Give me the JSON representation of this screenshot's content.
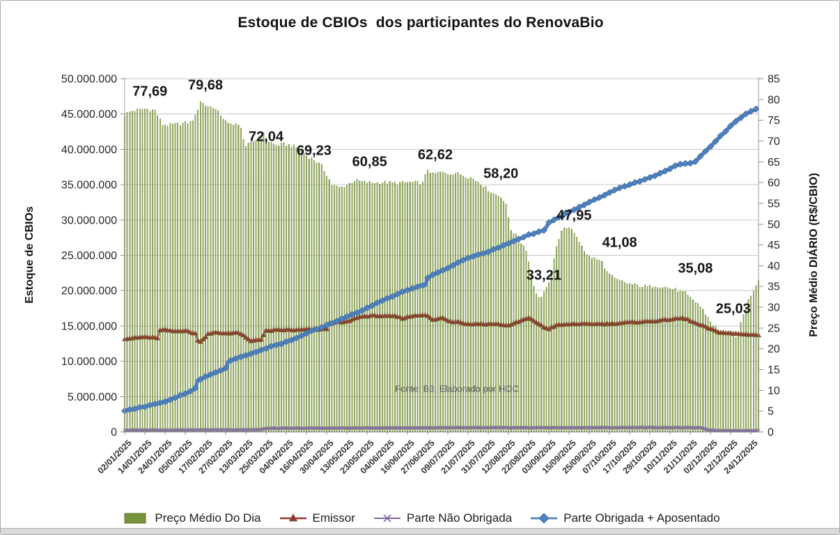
{
  "chart_data": {
    "type": "combo-bar-line",
    "title": "Estoque de CBIOs  dos participantes do RenovaBio",
    "source_note": "Fonte: B3, Elaborado por HOC",
    "legend_position": "bottom",
    "x_axis": {
      "n_points": 252,
      "points_per_tick": 8,
      "tick_labels": [
        "02/01/2025",
        "14/01/2025",
        "24/01/2025",
        "05/02/2025",
        "17/02/2025",
        "27/02/2025",
        "13/03/2025",
        "25/03/2025",
        "04/04/2025",
        "16/04/2025",
        "30/04/2025",
        "13/05/2025",
        "23/05/2025",
        "04/06/2025",
        "16/06/2025",
        "27/06/2025",
        "09/07/2025",
        "21/07/2025",
        "31/07/2025",
        "12/08/2025",
        "22/08/2025",
        "03/09/2025",
        "15/09/2025",
        "25/09/2025",
        "07/10/2025",
        "17/10/2025",
        "29/10/2025",
        "10/11/2025",
        "21/11/2025",
        "02/12/2025",
        "12/12/2025",
        "24/12/2025"
      ]
    },
    "left_axis": {
      "label": "Estoque de CBIOs",
      "min": 0,
      "max": 50000000,
      "step": 5000000
    },
    "right_axis": {
      "label": "Preço Médio DIÁRIO (R$/CBIO)",
      "min": 0,
      "max": 85,
      "step": 5
    },
    "series": [
      {
        "name": "Preço Médio Do Dia",
        "type": "bar",
        "axis": "right",
        "marker": "square",
        "color": "#77933C",
        "keypoints": [
          [
            0,
            76.5
          ],
          [
            3,
            77.3
          ],
          [
            6,
            77.6
          ],
          [
            9,
            77.8
          ],
          [
            12,
            77.4
          ],
          [
            13,
            76.3
          ],
          [
            15,
            74.0
          ],
          [
            18,
            73.9
          ],
          [
            22,
            74.2
          ],
          [
            26,
            74.5
          ],
          [
            28,
            76.0
          ],
          [
            30,
            79.7
          ],
          [
            32,
            78.6
          ],
          [
            35,
            78.2
          ],
          [
            38,
            76.3
          ],
          [
            41,
            74.0
          ],
          [
            44,
            74.3
          ],
          [
            46,
            73.0
          ],
          [
            48,
            68.8
          ],
          [
            50,
            69.5
          ],
          [
            53,
            70.8
          ],
          [
            55,
            71.8
          ],
          [
            57,
            70.0
          ],
          [
            60,
            69.0
          ],
          [
            63,
            69.3
          ],
          [
            66,
            69.0
          ],
          [
            69,
            68.2
          ],
          [
            72,
            66.5
          ],
          [
            75,
            65.5
          ],
          [
            78,
            64.0
          ],
          [
            80,
            62.0
          ],
          [
            82,
            59.5
          ],
          [
            85,
            58.8
          ],
          [
            88,
            59.5
          ],
          [
            91,
            60.6
          ],
          [
            94,
            60.2
          ],
          [
            98,
            60.0
          ],
          [
            103,
            60.1
          ],
          [
            108,
            59.9
          ],
          [
            113,
            60.1
          ],
          [
            118,
            60.0
          ],
          [
            120,
            63.3
          ],
          [
            122,
            62.0
          ],
          [
            125,
            62.5
          ],
          [
            128,
            62.2
          ],
          [
            131,
            62.4
          ],
          [
            134,
            61.8
          ],
          [
            137,
            61.2
          ],
          [
            140,
            60.3
          ],
          [
            143,
            58.8
          ],
          [
            146,
            57.4
          ],
          [
            149,
            56.8
          ],
          [
            151,
            54.5
          ],
          [
            153,
            48.8
          ],
          [
            156,
            46.5
          ],
          [
            159,
            44.0
          ],
          [
            161,
            38.0
          ],
          [
            163,
            33.0
          ],
          [
            165,
            32.4
          ],
          [
            167,
            34.5
          ],
          [
            169,
            38.0
          ],
          [
            171,
            45.0
          ],
          [
            173,
            48.5
          ],
          [
            175,
            49.4
          ],
          [
            178,
            48.0
          ],
          [
            181,
            45.0
          ],
          [
            183,
            42.5
          ],
          [
            186,
            41.8
          ],
          [
            189,
            41.0
          ],
          [
            191,
            38.5
          ],
          [
            194,
            36.8
          ],
          [
            199,
            35.8
          ],
          [
            203,
            35.3
          ],
          [
            207,
            34.9
          ],
          [
            210,
            35.3
          ],
          [
            214,
            34.9
          ],
          [
            218,
            34.3
          ],
          [
            222,
            33.4
          ],
          [
            224,
            32.2
          ],
          [
            227,
            31.0
          ],
          [
            230,
            28.5
          ],
          [
            233,
            25.8
          ],
          [
            236,
            24.2
          ],
          [
            239,
            23.2
          ],
          [
            242,
            22.6
          ],
          [
            243,
            23.5
          ],
          [
            244,
            26.0
          ],
          [
            246,
            30.5
          ],
          [
            248,
            33.0
          ],
          [
            250,
            35.5
          ],
          [
            251,
            37.0
          ]
        ]
      },
      {
        "name": "Emissor",
        "type": "line",
        "axis": "left",
        "marker": "triangle",
        "color": "#943634",
        "marker_edge": "#6f6126",
        "keypoints_millions": [
          [
            0,
            13.2
          ],
          [
            4,
            13.3
          ],
          [
            8,
            13.45
          ],
          [
            12,
            13.3
          ],
          [
            13,
            13.3
          ],
          [
            14,
            14.35
          ],
          [
            16,
            14.45
          ],
          [
            18,
            14.3
          ],
          [
            20,
            14.25
          ],
          [
            22,
            14.3
          ],
          [
            24,
            14.35
          ],
          [
            26,
            14.1
          ],
          [
            28,
            13.95
          ],
          [
            29,
            12.9
          ],
          [
            30,
            12.85
          ],
          [
            31,
            13.1
          ],
          [
            33,
            13.9
          ],
          [
            36,
            14.05
          ],
          [
            39,
            13.95
          ],
          [
            42,
            14.0
          ],
          [
            44,
            14.05
          ],
          [
            46,
            13.9
          ],
          [
            48,
            13.35
          ],
          [
            50,
            12.85
          ],
          [
            52,
            13.05
          ],
          [
            54,
            13.1
          ],
          [
            56,
            14.3
          ],
          [
            60,
            14.4
          ],
          [
            64,
            14.45
          ],
          [
            68,
            14.4
          ],
          [
            72,
            14.5
          ],
          [
            76,
            14.5
          ],
          [
            80,
            14.6
          ],
          [
            81,
            15.3
          ],
          [
            83,
            15.55
          ],
          [
            86,
            15.5
          ],
          [
            88,
            15.6
          ],
          [
            90,
            15.85
          ],
          [
            92,
            16.2
          ],
          [
            95,
            16.4
          ],
          [
            100,
            16.45
          ],
          [
            104,
            16.35
          ],
          [
            107,
            16.4
          ],
          [
            110,
            16.1
          ],
          [
            112,
            16.25
          ],
          [
            115,
            16.5
          ],
          [
            118,
            16.55
          ],
          [
            120,
            16.4
          ],
          [
            122,
            15.85
          ],
          [
            124,
            16.0
          ],
          [
            126,
            16.15
          ],
          [
            128,
            15.8
          ],
          [
            130,
            15.55
          ],
          [
            132,
            15.7
          ],
          [
            134,
            15.35
          ],
          [
            137,
            15.25
          ],
          [
            140,
            15.3
          ],
          [
            143,
            15.25
          ],
          [
            146,
            15.3
          ],
          [
            149,
            15.2
          ],
          [
            151,
            15.05
          ],
          [
            153,
            15.2
          ],
          [
            156,
            15.6
          ],
          [
            158,
            15.9
          ],
          [
            160,
            16.1
          ],
          [
            162,
            15.75
          ],
          [
            164,
            15.3
          ],
          [
            166,
            14.8
          ],
          [
            168,
            14.6
          ],
          [
            170,
            14.95
          ],
          [
            172,
            15.15
          ],
          [
            175,
            15.2
          ],
          [
            178,
            15.3
          ],
          [
            182,
            15.25
          ],
          [
            186,
            15.3
          ],
          [
            190,
            15.3
          ],
          [
            194,
            15.35
          ],
          [
            198,
            15.45
          ],
          [
            202,
            15.55
          ],
          [
            206,
            15.6
          ],
          [
            210,
            15.7
          ],
          [
            214,
            15.85
          ],
          [
            218,
            16.0
          ],
          [
            221,
            16.1
          ],
          [
            223,
            15.9
          ],
          [
            226,
            15.4
          ],
          [
            229,
            15.0
          ],
          [
            232,
            14.55
          ],
          [
            235,
            14.15
          ],
          [
            238,
            14.0
          ],
          [
            241,
            13.9
          ],
          [
            244,
            13.85
          ],
          [
            248,
            13.8
          ],
          [
            251,
            13.7
          ]
        ]
      },
      {
        "name": "Parte Não Obrigada",
        "type": "line",
        "axis": "left",
        "marker": "x",
        "color": "#8064A2",
        "keypoints_millions": [
          [
            0,
            0.25
          ],
          [
            30,
            0.28
          ],
          [
            50,
            0.3
          ],
          [
            54,
            0.32
          ],
          [
            56,
            0.5
          ],
          [
            70,
            0.52
          ],
          [
            90,
            0.55
          ],
          [
            120,
            0.58
          ],
          [
            150,
            0.6
          ],
          [
            180,
            0.6
          ],
          [
            210,
            0.62
          ],
          [
            226,
            0.6
          ],
          [
            229,
            0.55
          ],
          [
            231,
            0.25
          ],
          [
            234,
            0.2
          ],
          [
            240,
            0.18
          ],
          [
            251,
            0.18
          ]
        ]
      },
      {
        "name": "Parte Obrigada + Aposentado",
        "type": "line",
        "axis": "left",
        "marker": "diamond",
        "color": "#4F81BD",
        "keypoints_millions": [
          [
            0,
            3.0
          ],
          [
            4,
            3.3
          ],
          [
            8,
            3.6
          ],
          [
            12,
            3.95
          ],
          [
            16,
            4.3
          ],
          [
            20,
            4.8
          ],
          [
            22,
            5.15
          ],
          [
            24,
            5.4
          ],
          [
            26,
            5.7
          ],
          [
            28,
            6.2
          ],
          [
            29,
            7.3
          ],
          [
            32,
            7.8
          ],
          [
            36,
            8.4
          ],
          [
            40,
            9.0
          ],
          [
            41,
            9.9
          ],
          [
            43,
            10.3
          ],
          [
            46,
            10.6
          ],
          [
            50,
            11.1
          ],
          [
            54,
            11.6
          ],
          [
            58,
            12.1
          ],
          [
            62,
            12.5
          ],
          [
            66,
            13.0
          ],
          [
            70,
            13.6
          ],
          [
            74,
            14.3
          ],
          [
            78,
            14.8
          ],
          [
            82,
            15.4
          ],
          [
            86,
            16.0
          ],
          [
            90,
            16.6
          ],
          [
            94,
            17.2
          ],
          [
            98,
            17.9
          ],
          [
            102,
            18.6
          ],
          [
            106,
            19.2
          ],
          [
            110,
            19.8
          ],
          [
            114,
            20.3
          ],
          [
            117,
            20.7
          ],
          [
            119,
            20.8
          ],
          [
            120,
            21.8
          ],
          [
            124,
            22.6
          ],
          [
            128,
            23.2
          ],
          [
            132,
            24.0
          ],
          [
            136,
            24.6
          ],
          [
            140,
            25.1
          ],
          [
            144,
            25.5
          ],
          [
            148,
            26.1
          ],
          [
            152,
            26.7
          ],
          [
            156,
            27.3
          ],
          [
            160,
            27.9
          ],
          [
            164,
            28.3
          ],
          [
            166,
            28.5
          ],
          [
            168,
            29.6
          ],
          [
            172,
            30.4
          ],
          [
            176,
            31.1
          ],
          [
            180,
            31.8
          ],
          [
            184,
            32.5
          ],
          [
            188,
            33.2
          ],
          [
            192,
            33.9
          ],
          [
            196,
            34.5
          ],
          [
            200,
            35.0
          ],
          [
            204,
            35.5
          ],
          [
            208,
            36.0
          ],
          [
            212,
            36.6
          ],
          [
            216,
            37.3
          ],
          [
            219,
            37.8
          ],
          [
            222,
            38.0
          ],
          [
            224,
            38.0
          ],
          [
            226,
            38.3
          ],
          [
            228,
            39.0
          ],
          [
            230,
            39.7
          ],
          [
            232,
            40.4
          ],
          [
            234,
            41.1
          ],
          [
            236,
            41.9
          ],
          [
            238,
            42.6
          ],
          [
            240,
            43.3
          ],
          [
            242,
            44.0
          ],
          [
            244,
            44.5
          ],
          [
            246,
            45.0
          ],
          [
            248,
            45.4
          ],
          [
            250,
            45.7
          ],
          [
            251,
            45.8
          ]
        ]
      }
    ],
    "annotations": [
      {
        "text": "77,69",
        "xi": 10,
        "y_value": 81.8
      },
      {
        "text": "79,68",
        "xi": 32,
        "y_value": 83.4
      },
      {
        "text": "72,04",
        "xi": 56,
        "y_value": 71.0
      },
      {
        "text": "69,23",
        "xi": 75,
        "y_value": 67.5
      },
      {
        "text": "60,85",
        "xi": 97,
        "y_value": 64.9
      },
      {
        "text": "62,62",
        "xi": 123,
        "y_value": 66.5
      },
      {
        "text": "58,20",
        "xi": 149,
        "y_value": 62.0
      },
      {
        "text": "33,21",
        "xi": 166,
        "y_value": 37.5
      },
      {
        "text": "47,95",
        "xi": 178,
        "y_value": 52.0
      },
      {
        "text": "41,08",
        "xi": 196,
        "y_value": 45.4
      },
      {
        "text": "35,08",
        "xi": 226,
        "y_value": 39.2
      },
      {
        "text": "25,03",
        "xi": 241,
        "y_value": 29.5
      }
    ]
  }
}
